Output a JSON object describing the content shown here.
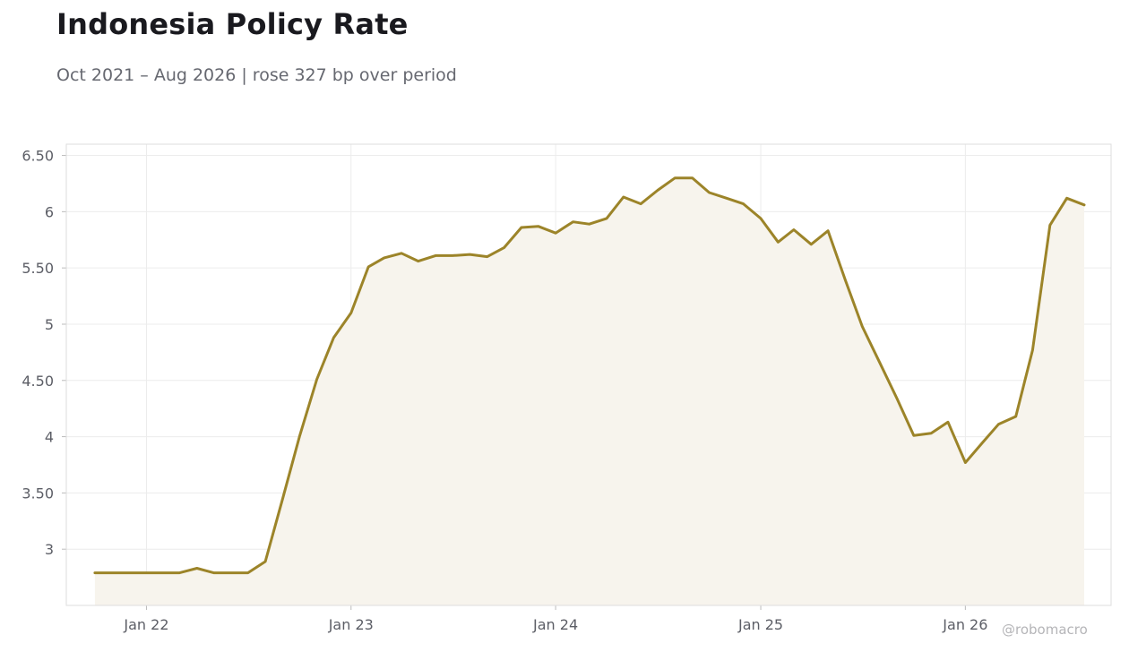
{
  "title": "Indonesia Policy Rate",
  "subtitle": "Oct 2021 – Aug 2026 | rose 327 bp over period",
  "watermark": "@robomacro",
  "colors": {
    "line": "#9c8429",
    "fill": "#f7f4ed",
    "grid": "#ececec",
    "frame": "#dddddd",
    "text": "#5c5e66"
  },
  "chart_data": {
    "type": "area",
    "title": "Indonesia Policy Rate",
    "subtitle": "Oct 2021 – Aug 2026 | rose 327 bp over period",
    "xlabel": "",
    "ylabel": "",
    "grid": true,
    "legend": "none",
    "ylim": [
      2.5,
      6.6
    ],
    "xlim": [
      "2021-08-11",
      "2026-09-18"
    ],
    "y_ticks": [
      3,
      3.5,
      4,
      4.5,
      5,
      5.5,
      6,
      6.5
    ],
    "y_tick_labels": [
      "3",
      "3.50",
      "4",
      "4.50",
      "5",
      "5.50",
      "6",
      "6.50"
    ],
    "x_ticks": [
      "2022-01-01",
      "2023-01-01",
      "2024-01-01",
      "2025-01-01",
      "2026-01-01"
    ],
    "x_tick_labels": [
      "Jan 22",
      "Jan 23",
      "Jan 24",
      "Jan 25",
      "Jan 26"
    ],
    "series": [
      {
        "x": [
          "2021-10-01",
          "2021-11-01",
          "2021-12-01",
          "2022-01-01",
          "2022-02-01",
          "2022-03-01",
          "2022-04-01",
          "2022-05-01",
          "2022-06-01",
          "2022-07-01",
          "2022-08-01",
          "2022-09-01",
          "2022-10-01",
          "2022-11-01",
          "2022-12-01",
          "2023-01-01",
          "2023-02-01",
          "2023-03-01",
          "2023-04-01",
          "2023-05-01",
          "2023-06-01",
          "2023-07-01",
          "2023-08-01",
          "2023-09-01",
          "2023-10-01",
          "2023-11-01",
          "2023-12-01",
          "2024-01-01",
          "2024-02-01",
          "2024-03-01",
          "2024-04-01",
          "2024-05-01",
          "2024-06-01",
          "2024-07-01",
          "2024-08-01",
          "2024-09-01",
          "2024-10-01",
          "2024-11-01",
          "2024-12-01",
          "2025-01-01",
          "2025-02-01",
          "2025-03-01",
          "2025-04-01",
          "2025-05-01",
          "2025-06-01",
          "2025-07-01",
          "2025-08-01",
          "2025-09-01",
          "2025-10-01",
          "2025-11-01",
          "2025-12-01",
          "2026-01-01",
          "2026-02-01",
          "2026-03-01",
          "2026-04-01",
          "2026-05-01",
          "2026-06-01",
          "2026-07-01",
          "2026-08-01"
        ],
        "values": [
          2.79,
          2.79,
          2.79,
          2.79,
          2.79,
          2.79,
          2.83,
          2.79,
          2.79,
          2.79,
          2.89,
          3.45,
          4.0,
          4.51,
          4.88,
          5.1,
          5.51,
          5.59,
          5.63,
          5.56,
          5.61,
          5.61,
          5.62,
          5.6,
          5.68,
          5.86,
          5.87,
          5.81,
          5.91,
          5.89,
          5.94,
          6.13,
          6.07,
          6.19,
          6.3,
          6.3,
          6.17,
          6.12,
          6.07,
          5.94,
          5.73,
          5.84,
          5.71,
          5.83,
          5.39,
          4.98,
          4.66,
          4.34,
          4.01,
          4.03,
          4.13,
          3.77,
          3.95,
          4.11,
          4.18,
          4.77,
          5.88,
          6.12,
          6.06
        ]
      }
    ]
  }
}
